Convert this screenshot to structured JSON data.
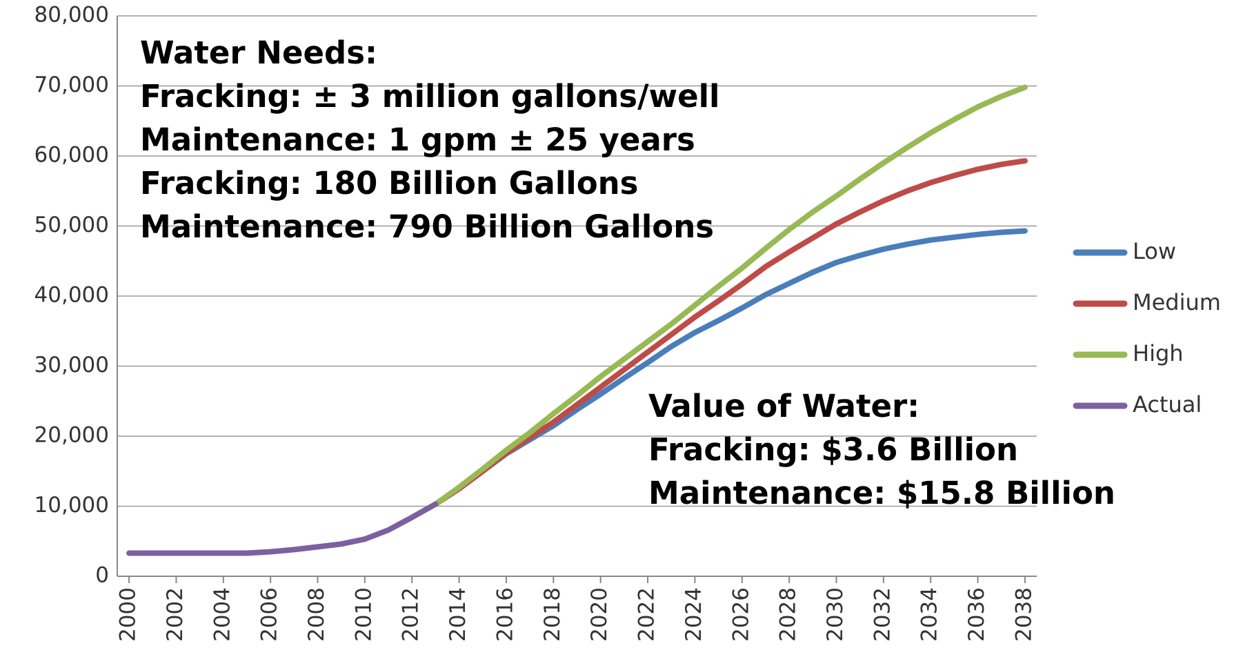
{
  "chart_data": {
    "type": "line",
    "x": [
      2000,
      2001,
      2002,
      2003,
      2004,
      2005,
      2006,
      2007,
      2008,
      2009,
      2010,
      2011,
      2012,
      2013,
      2014,
      2015,
      2016,
      2017,
      2018,
      2019,
      2020,
      2021,
      2022,
      2023,
      2024,
      2025,
      2026,
      2027,
      2028,
      2029,
      2030,
      2031,
      2032,
      2033,
      2034,
      2035,
      2036,
      2037,
      2038
    ],
    "series": [
      {
        "name": "Low",
        "color": "#4a7ebb",
        "values": [
          null,
          null,
          null,
          null,
          null,
          null,
          null,
          null,
          null,
          null,
          null,
          null,
          null,
          10300,
          12500,
          15000,
          17500,
          19500,
          21500,
          23800,
          26000,
          28300,
          30500,
          32800,
          34800,
          36500,
          38300,
          40200,
          41800,
          43400,
          44800,
          45800,
          46700,
          47400,
          48000,
          48400,
          48800,
          49100,
          49300
        ]
      },
      {
        "name": "Medium",
        "color": "#be4b48",
        "values": [
          null,
          null,
          null,
          null,
          null,
          null,
          null,
          null,
          null,
          null,
          null,
          null,
          null,
          10300,
          12500,
          15000,
          17600,
          19800,
          22000,
          24500,
          27000,
          29500,
          32000,
          34500,
          37000,
          39300,
          41700,
          44200,
          46300,
          48300,
          50300,
          52000,
          53600,
          55000,
          56200,
          57200,
          58100,
          58800,
          59300
        ]
      },
      {
        "name": "High",
        "color": "#98b954",
        "values": [
          null,
          null,
          null,
          null,
          null,
          null,
          null,
          null,
          null,
          null,
          null,
          null,
          null,
          10300,
          12700,
          15300,
          18000,
          20500,
          23200,
          25800,
          28500,
          31000,
          33500,
          36000,
          38700,
          41400,
          44000,
          46800,
          49500,
          52000,
          54300,
          56700,
          59000,
          61200,
          63300,
          65200,
          67000,
          68500,
          69800
        ]
      },
      {
        "name": "Actual",
        "color": "#7d60a0",
        "values": [
          3300,
          3300,
          3300,
          3300,
          3300,
          3300,
          3500,
          3800,
          4200,
          4600,
          5300,
          6600,
          8400,
          10300,
          null,
          null,
          null,
          null,
          null,
          null,
          null,
          null,
          null,
          null,
          null,
          null,
          null,
          null,
          null,
          null,
          null,
          null,
          null,
          null,
          null,
          null,
          null,
          null,
          null
        ]
      }
    ],
    "xlim": [
      1999.5,
      2038.5
    ],
    "xticks": [
      2000,
      2002,
      2004,
      2006,
      2008,
      2010,
      2012,
      2014,
      2016,
      2018,
      2020,
      2022,
      2024,
      2026,
      2028,
      2030,
      2032,
      2034,
      2036,
      2038
    ],
    "ylim": [
      0,
      80000
    ],
    "yticks": [
      {
        "value": 0,
        "label": "0"
      },
      {
        "value": 10000,
        "label": "10,000"
      },
      {
        "value": 20000,
        "label": "20,000"
      },
      {
        "value": 30000,
        "label": "30,000"
      },
      {
        "value": 40000,
        "label": "40,000"
      },
      {
        "value": 50000,
        "label": "50,000"
      },
      {
        "value": 60000,
        "label": "60,000"
      },
      {
        "value": 70000,
        "label": "70,000"
      },
      {
        "value": 80000,
        "label": "80,000"
      }
    ],
    "grid": true,
    "legend": "right",
    "annotations": [
      {
        "lines": [
          "Water Needs:",
          "Fracking:  ± 3 million gallons/well",
          "Maintenance:  1 gpm ± 25 years",
          "Fracking:  180 Billion Gallons",
          "Maintenance:  790 Billion Gallons"
        ]
      },
      {
        "lines": [
          "Value of Water:",
          "Fracking:  $3.6 Billion",
          "Maintenance:  $15.8 Billion"
        ]
      }
    ]
  }
}
